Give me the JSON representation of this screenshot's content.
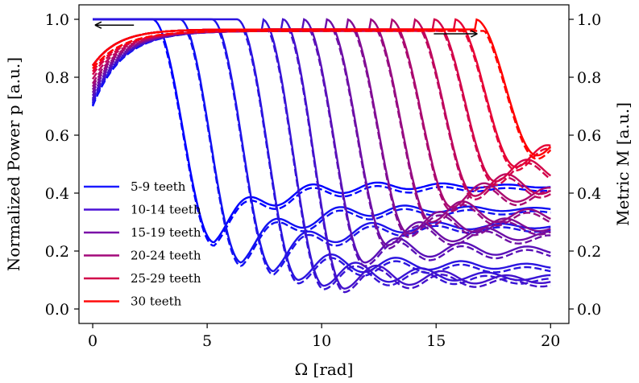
{
  "chart_data": {
    "type": "line",
    "title": "",
    "xlabel": "Ω [rad]",
    "ylabel_left": "Normalized Power p [a.u.]",
    "ylabel_right": "Metric M [a.u.]",
    "xlim": [
      -0.6,
      20.8
    ],
    "ylim": [
      -0.05,
      1.05
    ],
    "xticks": [
      "0",
      "5",
      "10",
      "15",
      "20"
    ],
    "yticks_left": [
      "0.0",
      "0.2",
      "0.4",
      "0.6",
      "0.8",
      "1.0"
    ],
    "yticks_right": [
      "0.0",
      "0.2",
      "0.4",
      "0.6",
      "0.8",
      "1.0"
    ],
    "solid_series": "Normalized power p (left axis, left-pointing arrow)",
    "dashed_series": "Metric M (right axis, right-pointing arrow)",
    "legend_position": "lower-left",
    "legend": [
      {
        "label": "5-9 teeth",
        "color": "#1a1aff"
      },
      {
        "label": "10-14 teeth",
        "color": "#4c12d6"
      },
      {
        "label": "15-19 teeth",
        "color": "#7a0fa8"
      },
      {
        "label": "20-24 teeth",
        "color": "#a3097a"
      },
      {
        "label": "25-29 teeth",
        "color": "#d1054a"
      },
      {
        "label": "30 teeth",
        "color": "#ff0a0a"
      }
    ],
    "curves": [
      {
        "teeth": 5,
        "color": "#0000ff",
        "cutoff": 4.0,
        "min_value": 0.23,
        "tail_value": 0.42
      },
      {
        "teeth": 6,
        "color": "#1111f2",
        "cutoff": 5.2,
        "min_value": 0.16,
        "tail_value": 0.34
      },
      {
        "teeth": 7,
        "color": "#1f13ea",
        "cutoff": 6.6,
        "min_value": 0.13,
        "tail_value": 0.28
      },
      {
        "teeth": 8,
        "color": "#2b14e0",
        "cutoff": 7.7,
        "min_value": 0.1,
        "tail_value": 0.14
      },
      {
        "teeth": 9,
        "color": "#3714d6",
        "cutoff": 8.8,
        "min_value": 0.08,
        "tail_value": 0.1
      },
      {
        "teeth": 10,
        "color": "#4412cc",
        "cutoff": 9.7,
        "min_value": 0.07,
        "tail_value": 0.09
      },
      {
        "teeth": 12,
        "color": "#5a10b8",
        "cutoff": 10.6,
        "min_value": 0.16,
        "tail_value": 0.19
      },
      {
        "teeth": 14,
        "color": "#6e0fa6",
        "cutoff": 11.6,
        "min_value": 0.22,
        "tail_value": 0.24
      },
      {
        "teeth": 16,
        "color": "#820d94",
        "cutoff": 12.5,
        "min_value": 0.26,
        "tail_value": 0.27
      },
      {
        "teeth": 18,
        "color": "#960b82",
        "cutoff": 13.5,
        "min_value": 0.3,
        "tail_value": 0.3
      },
      {
        "teeth": 20,
        "color": "#aa0970",
        "cutoff": 14.4,
        "min_value": 0.35,
        "tail_value": 0.38
      },
      {
        "teeth": 23,
        "color": "#be075e",
        "cutoff": 15.4,
        "min_value": 0.39,
        "tail_value": 0.4
      },
      {
        "teeth": 26,
        "color": "#d2054a",
        "cutoff": 16.3,
        "min_value": 0.44,
        "tail_value": 0.45
      },
      {
        "teeth": 28,
        "color": "#e60436",
        "cutoff": 17.2,
        "min_value": 0.49,
        "tail_value": 0.5
      },
      {
        "teeth": 30,
        "color": "#ff0000",
        "cutoff": 18.1,
        "min_value": 0.53,
        "tail_value": 0.53
      }
    ],
    "arrows": [
      {
        "direction": "left",
        "x_from": 1.8,
        "x_to": 0.1,
        "y": 0.98
      },
      {
        "direction": "right",
        "x_from": 14.9,
        "x_to": 16.8,
        "y": 0.95
      }
    ]
  }
}
